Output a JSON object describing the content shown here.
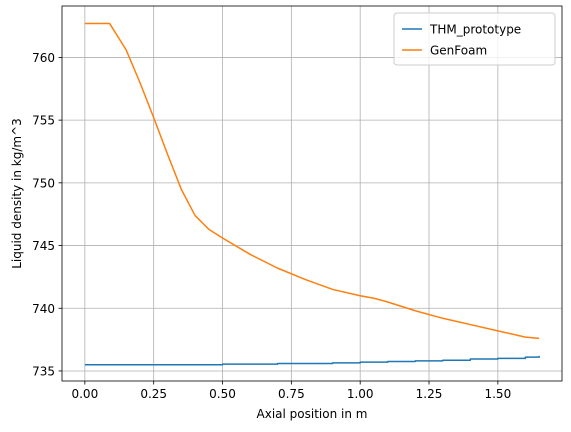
{
  "chart_data": {
    "type": "line",
    "title": "",
    "xlabel": "Axial position in m",
    "ylabel": "Liquid density in kg/m^3",
    "xlim": [
      -0.083,
      1.733
    ],
    "ylim": [
      734.2,
      764.1
    ],
    "x_ticks": [
      0.0,
      0.25,
      0.5,
      0.75,
      1.0,
      1.25,
      1.5
    ],
    "x_tick_labels": [
      "0.00",
      "0.25",
      "0.50",
      "0.75",
      "1.00",
      "1.25",
      "1.50"
    ],
    "y_ticks": [
      735,
      740,
      745,
      750,
      755,
      760
    ],
    "y_tick_labels": [
      "735",
      "740",
      "745",
      "750",
      "755",
      "760"
    ],
    "grid": true,
    "legend_position": "top-right",
    "series": [
      {
        "name": "THM_prototype",
        "color": "#1f77b4",
        "step": true,
        "x": [
          0.0,
          0.1,
          0.2,
          0.3,
          0.4,
          0.5,
          0.6,
          0.7,
          0.8,
          0.9,
          1.0,
          1.1,
          1.2,
          1.3,
          1.4,
          1.5,
          1.6,
          1.65
        ],
        "y": [
          735.5,
          735.5,
          735.5,
          735.5,
          735.5,
          735.55,
          735.55,
          735.6,
          735.6,
          735.65,
          735.7,
          735.75,
          735.8,
          735.85,
          735.95,
          736.0,
          736.1,
          736.2
        ]
      },
      {
        "name": "GenFoam",
        "color": "#ff7f0e",
        "step": false,
        "x": [
          0.0,
          0.09,
          0.15,
          0.2,
          0.25,
          0.3,
          0.35,
          0.4,
          0.45,
          0.5,
          0.6,
          0.7,
          0.8,
          0.9,
          1.0,
          1.05,
          1.1,
          1.2,
          1.3,
          1.4,
          1.5,
          1.6,
          1.65
        ],
        "y": [
          762.7,
          762.7,
          760.6,
          758.0,
          755.2,
          752.3,
          749.5,
          747.4,
          746.3,
          745.6,
          744.3,
          743.2,
          742.3,
          741.5,
          741.0,
          740.8,
          740.5,
          739.8,
          739.2,
          738.7,
          738.2,
          737.7,
          737.6
        ]
      }
    ]
  }
}
